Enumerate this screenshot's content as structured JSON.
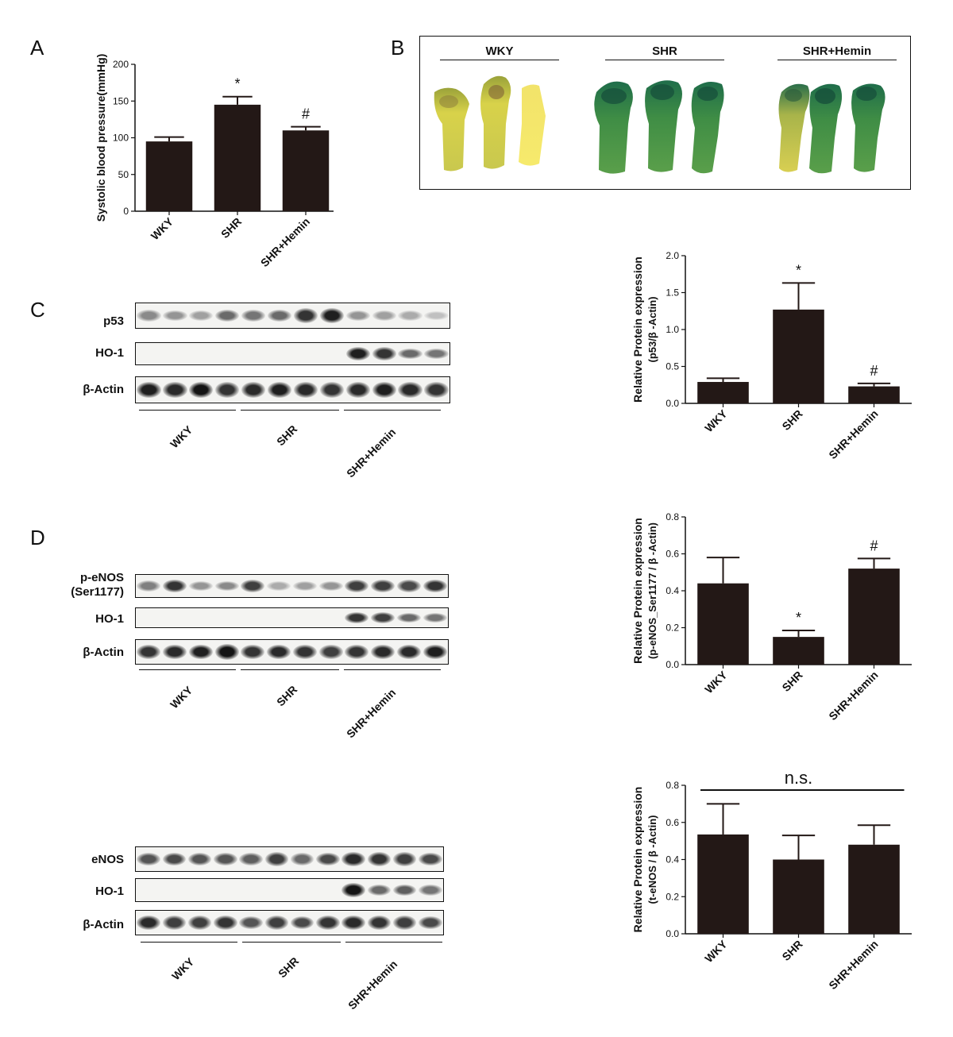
{
  "panels": {
    "a": "A",
    "b": "B",
    "c": "C",
    "d": "D"
  },
  "photo_panel": {
    "groups": [
      "WKY",
      "SHR",
      "SHR+Hemin"
    ]
  },
  "blots": {
    "c": {
      "rows": [
        "p53",
        "HO-1",
        "β-Actin"
      ],
      "groups": [
        "WKY",
        "SHR",
        "SHR+Hemin"
      ]
    },
    "d_p": {
      "rows": [
        "p-eNOS\n(Ser1177)",
        "HO-1",
        "β-Actin"
      ],
      "groups": [
        "WKY",
        "SHR",
        "SHR+Hemin"
      ]
    },
    "d_t": {
      "rows": [
        "eNOS",
        "HO-1",
        "β-Actin"
      ],
      "groups": [
        "WKY",
        "SHR",
        "SHR+Hemin"
      ]
    }
  },
  "colors": {
    "bar": "#231816",
    "axis": "#111111",
    "photo_green": "#2e7d4f",
    "photo_yellow": "#e8d84a"
  },
  "chart_data": [
    {
      "id": "bp",
      "type": "bar",
      "ylabel": "Systolic blood pressure(mmHg)",
      "categories": [
        "WKY",
        "SHR",
        "SHR+Hemin"
      ],
      "values": [
        95,
        145,
        110
      ],
      "errors": [
        6,
        11,
        5
      ],
      "annotations": [
        "",
        "*",
        "#"
      ],
      "ylim": [
        0,
        200
      ],
      "yticks": [
        "0",
        "50",
        "100",
        "150",
        "200"
      ]
    },
    {
      "id": "p53",
      "type": "bar",
      "ylabel": "Relative Protein expression",
      "ylabel2": "(p53/β -Actin)",
      "categories": [
        "WKY",
        "SHR",
        "SHR+Hemin"
      ],
      "values": [
        0.29,
        1.27,
        0.23
      ],
      "errors": [
        0.05,
        0.36,
        0.04
      ],
      "annotations": [
        "",
        "*",
        "#"
      ],
      "ylim": [
        0,
        2.0
      ],
      "yticks": [
        "0.0",
        "0.5",
        "1.0",
        "1.5",
        "2.0"
      ]
    },
    {
      "id": "peNOS",
      "type": "bar",
      "ylabel": "Relative Protein expression",
      "ylabel2": "(p-eNOS_Ser1177 / β -Actin)",
      "categories": [
        "WKY",
        "SHR",
        "SHR+Hemin"
      ],
      "values": [
        0.44,
        0.15,
        0.52
      ],
      "errors": [
        0.14,
        0.035,
        0.055
      ],
      "annotations": [
        "",
        "*",
        "#"
      ],
      "ylim": [
        0,
        0.8
      ],
      "yticks": [
        "0.0",
        "0.2",
        "0.4",
        "0.6",
        "0.8"
      ]
    },
    {
      "id": "teNOS",
      "type": "bar",
      "ylabel": "Relative Protein expression",
      "ylabel2": "(t-eNOS / β -Actin)",
      "categories": [
        "WKY",
        "SHR",
        "SHR+Hemin"
      ],
      "values": [
        0.535,
        0.4,
        0.48
      ],
      "errors": [
        0.165,
        0.13,
        0.105
      ],
      "annotations": [
        "",
        "",
        ""
      ],
      "span_label": "n.s.",
      "ylim": [
        0,
        0.8
      ],
      "yticks": [
        "0.0",
        "0.2",
        "0.4",
        "0.6",
        "0.8"
      ]
    }
  ]
}
